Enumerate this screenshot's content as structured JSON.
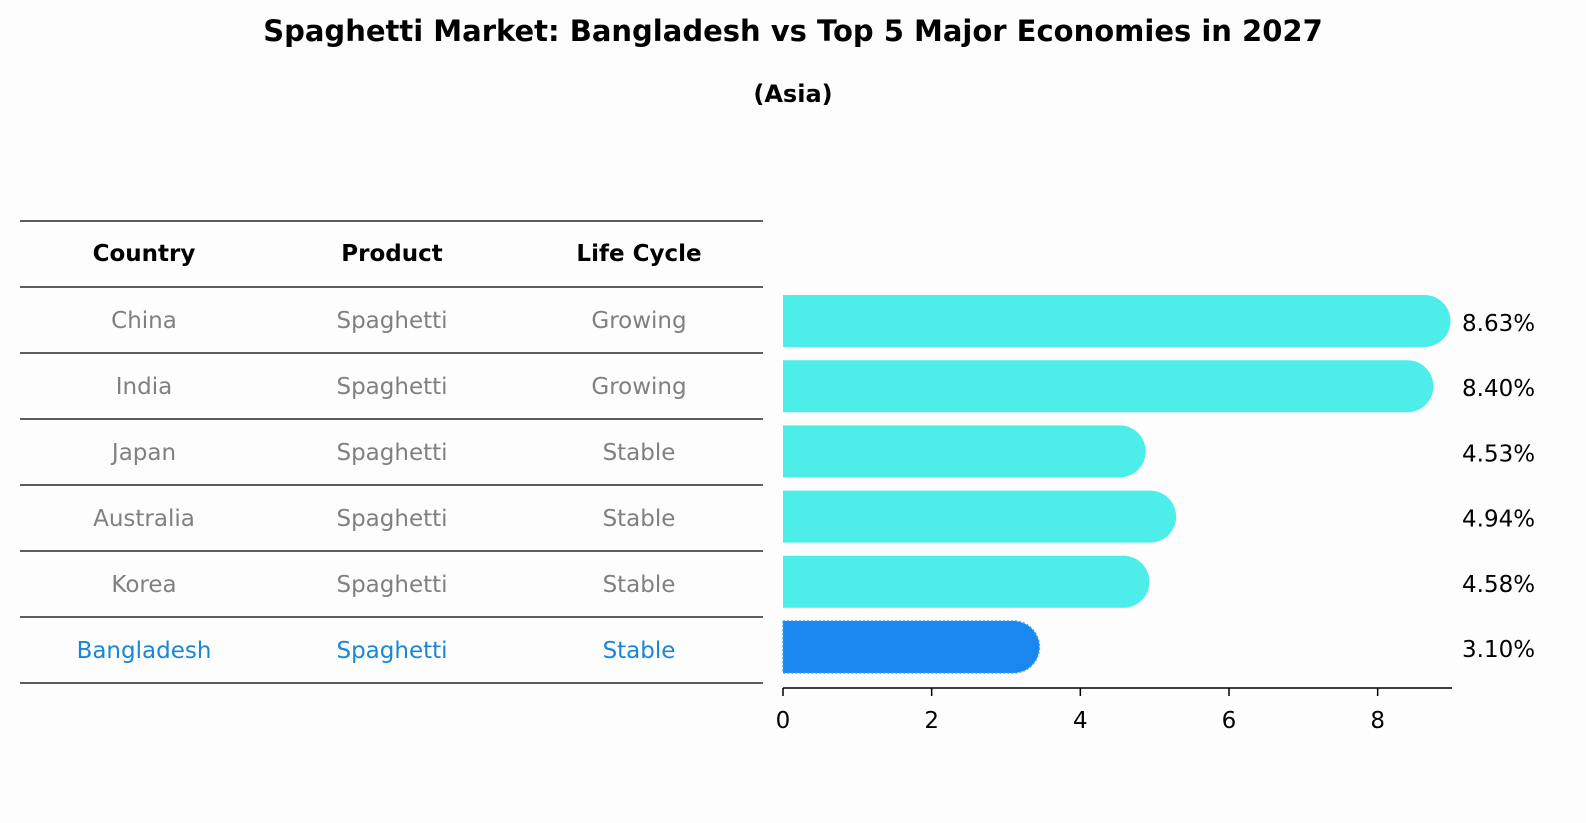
{
  "title": "Spaghetti Market: Bangladesh vs Top 5 Major Economies in 2027",
  "subtitle": "(Asia)",
  "table": {
    "headers": [
      "Country",
      "Product",
      "Life Cycle"
    ],
    "rows": [
      {
        "country": "China",
        "product": "Spaghetti",
        "life_cycle": "Growing",
        "highlight": false
      },
      {
        "country": "India",
        "product": "Spaghetti",
        "life_cycle": "Growing",
        "highlight": false
      },
      {
        "country": "Japan",
        "product": "Spaghetti",
        "life_cycle": "Stable",
        "highlight": false
      },
      {
        "country": "Australia",
        "product": "Spaghetti",
        "life_cycle": "Stable",
        "highlight": false
      },
      {
        "country": "Korea",
        "product": "Spaghetti",
        "life_cycle": "Stable",
        "highlight": false
      },
      {
        "country": "Bangladesh",
        "product": "Spaghetti",
        "life_cycle": "Stable",
        "highlight": true
      }
    ]
  },
  "colors": {
    "bar": "#4deeea",
    "highlight_bar": "#1a86f0",
    "row_text": "#808080",
    "highlight_text": "#1a86d8",
    "rule": "#000000"
  },
  "chart_data": {
    "type": "bar",
    "orientation": "horizontal",
    "categories": [
      "China",
      "India",
      "Japan",
      "Australia",
      "Korea",
      "Bangladesh"
    ],
    "values": [
      8.63,
      8.4,
      4.53,
      4.94,
      4.58,
      3.1
    ],
    "value_labels": [
      "8.63%",
      "8.40%",
      "4.53%",
      "4.94%",
      "4.58%",
      "3.10%"
    ],
    "highlight_index": 5,
    "xlim": [
      0,
      9
    ],
    "xticks": [
      0,
      2,
      4,
      6,
      8
    ],
    "xlabel": "",
    "ylabel": "",
    "grid": false
  }
}
